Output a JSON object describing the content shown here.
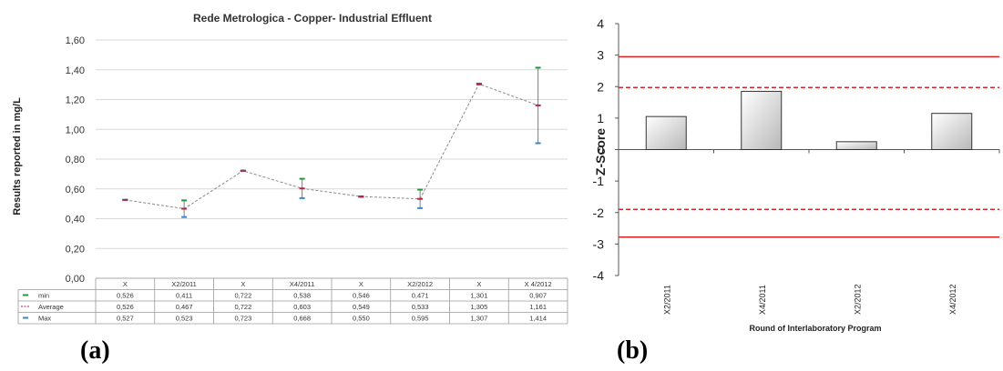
{
  "panel_labels": {
    "a": "(a)",
    "b": "(b)"
  },
  "chart_data": [
    {
      "type": "line",
      "title": "Rede Metrologica - Copper- Industrial Effluent",
      "xlabel": "",
      "ylabel": "Results reported in mg/L",
      "ylim": [
        0,
        1.6
      ],
      "yticks": [
        "0,00",
        "0,20",
        "0,40",
        "0,60",
        "0,80",
        "1,00",
        "1,20",
        "1,40",
        "1,60"
      ],
      "grid": true,
      "categories": [
        "X",
        "X2/2011",
        "X",
        "X4/2011",
        "X",
        "X2/2012",
        "X",
        "X 4/2012"
      ],
      "series": [
        {
          "name": "min",
          "color": "#1f9a3a",
          "values": [
            0.526,
            0.411,
            0.722,
            0.538,
            0.546,
            0.471,
            1.301,
            0.907
          ],
          "labels": [
            "0,526",
            "0,411",
            "0,722",
            "0,538",
            "0,546",
            "0,471",
            "1,301",
            "0,907"
          ]
        },
        {
          "name": "Average",
          "color": "#b5224a",
          "values": [
            0.526,
            0.467,
            0.722,
            0.603,
            0.549,
            0.533,
            1.305,
            1.161
          ],
          "labels": [
            "0,526",
            "0,467",
            "0,722",
            "0,603",
            "0,549",
            "0,533",
            "1,305",
            "1,161"
          ]
        },
        {
          "name": "Max",
          "color": "#3a86c8",
          "values": [
            0.527,
            0.523,
            0.723,
            0.668,
            0.55,
            0.595,
            1.307,
            1.414
          ],
          "labels": [
            "0,527",
            "0,523",
            "0,723",
            "0,668",
            "0,550",
            "0,595",
            "1,307",
            "1,414"
          ]
        }
      ]
    },
    {
      "type": "bar",
      "title": "",
      "xlabel": "Round of Interlaboratory Program",
      "ylabel": "Z-Score",
      "ylim": [
        -4,
        4
      ],
      "yticks": [
        "4",
        "3",
        "2",
        "1",
        "0",
        "-1",
        "-2",
        "-3",
        "-4"
      ],
      "categories": [
        "X2/2011",
        "X4/2011",
        "X2/2012",
        "X4/2012"
      ],
      "values": [
        1.05,
        1.85,
        0.25,
        1.15
      ],
      "reference_lines": [
        {
          "value": 2.95,
          "style": "solid"
        },
        {
          "value": 1.97,
          "style": "dashed"
        },
        {
          "value": -1.9,
          "style": "dashed"
        },
        {
          "value": -2.78,
          "style": "solid"
        }
      ],
      "reference_color": "#e02020"
    }
  ]
}
